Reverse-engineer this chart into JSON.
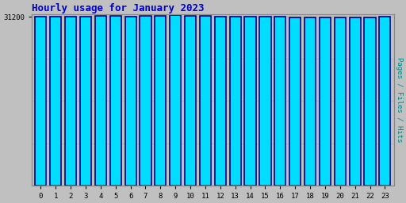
{
  "title": "Hourly usage for January 2023",
  "ylabel_right": "Pages / Files / Hits",
  "categories": [
    0,
    1,
    2,
    3,
    4,
    5,
    6,
    7,
    8,
    9,
    10,
    11,
    12,
    13,
    14,
    15,
    16,
    17,
    18,
    19,
    20,
    21,
    22,
    23
  ],
  "values": [
    31150,
    31230,
    31210,
    31230,
    31310,
    31330,
    31280,
    31300,
    31380,
    31430,
    31390,
    31360,
    31280,
    31200,
    31210,
    31220,
    31240,
    31130,
    31100,
    31080,
    31080,
    31080,
    31090,
    31200
  ],
  "bar_color": "#00DDFF",
  "bar_edge_color_left": "#000088",
  "bar_edge_color_right": "#006600",
  "bar_edge_width": 1.2,
  "title_color": "#0000CC",
  "title_fontsize": 9,
  "background_color": "#C0C0C0",
  "plot_bg_color": "#C0C0C0",
  "ylabel_right_color": "#008888",
  "ytick_label": "31200",
  "ytick_value": 31200,
  "ylim_min": 0,
  "ylim_max": 31600,
  "figsize": [
    5.12,
    2.56
  ],
  "dpi": 100
}
